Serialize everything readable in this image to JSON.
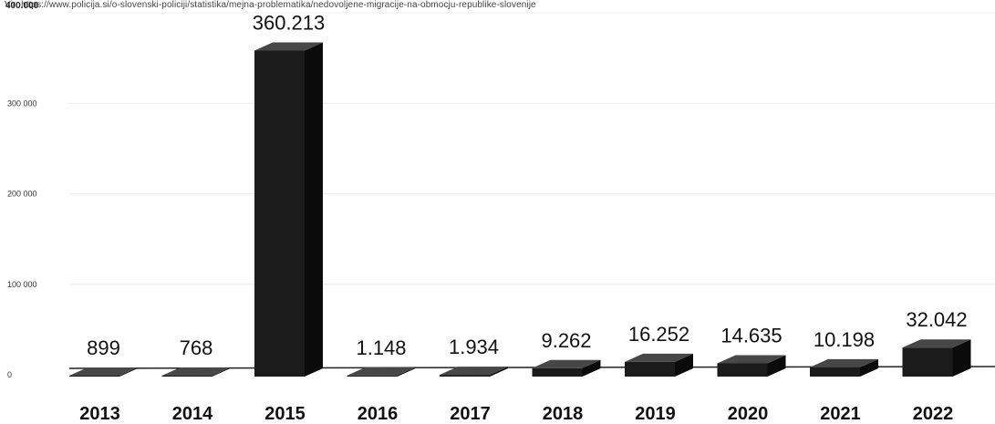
{
  "source_note": "Vir: https://www.policija.si/o-slovenski-policiji/statistika/mejna-problematika/nedovoljene-migracije-na-obmocju-republike-slovenije",
  "colors": {
    "bar_front": "#1b1b1b",
    "bar_top": "#474747",
    "bar_side": "#0b0b0b",
    "grid": "#ececec"
  },
  "chart_data": {
    "type": "bar",
    "categories": [
      "2013",
      "2014",
      "2015",
      "2016",
      "2017",
      "2018",
      "2019",
      "2020",
      "2021",
      "2022"
    ],
    "values": [
      899,
      768,
      360213,
      1148,
      1934,
      9262,
      16252,
      14635,
      10198,
      32042
    ],
    "data_labels": [
      "899",
      "768",
      "360.213",
      "1.148",
      "1.934",
      "9.262",
      "16.252",
      "14.635",
      "10.198",
      "32.042"
    ],
    "yticks": [
      0,
      100000,
      200000,
      300000,
      400000
    ],
    "ytick_labels": [
      "0",
      "100 000",
      "200 000",
      "300 000",
      "400.000"
    ],
    "ylim": [
      0,
      400000
    ],
    "grid": true,
    "style": "3d"
  }
}
